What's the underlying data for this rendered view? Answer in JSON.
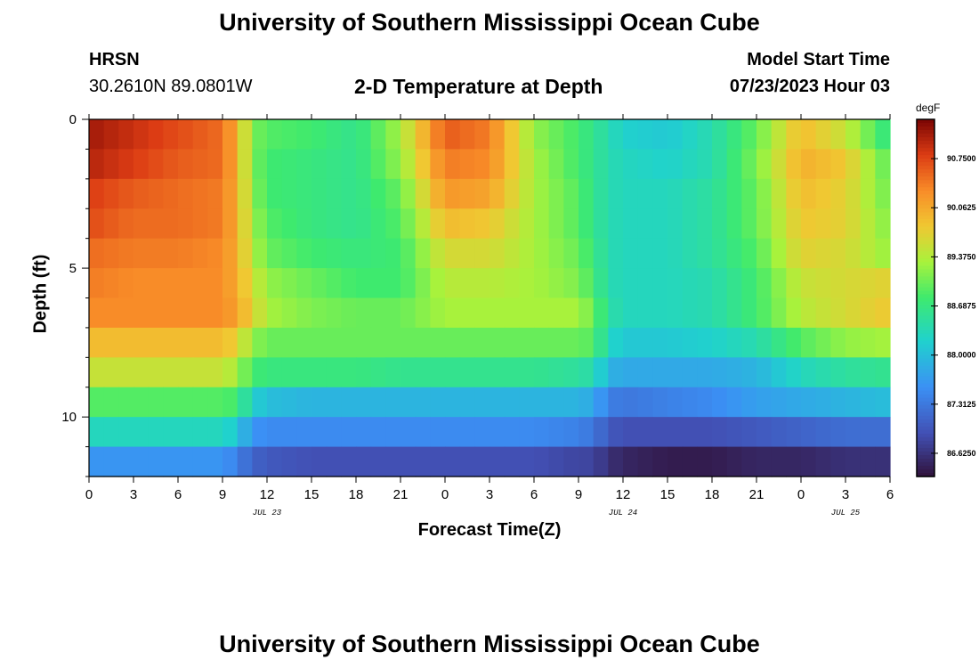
{
  "page": {
    "title": "University of Southern Mississippi Ocean Cube",
    "station": "HRSN",
    "coordinates": "30.2610N  89.0801W",
    "subtitle": "2-D Temperature at Depth",
    "model_start_label": "Model Start Time",
    "model_start_value": "07/23/2023 Hour 03",
    "footer_title": "University of Southern Mississippi Ocean Cube"
  },
  "chart_data": {
    "type": "heatmap",
    "title": "2-D Temperature at Depth",
    "xlabel": "Forecast Time(Z)",
    "ylabel": "Depth (ft)",
    "x_range_hours": [
      0,
      54
    ],
    "ylim": [
      12,
      0
    ],
    "x_tick_labels": [
      "0",
      "3",
      "6",
      "9",
      "12",
      "15",
      "18",
      "21",
      "0",
      "3",
      "6",
      "9",
      "12",
      "15",
      "18",
      "21",
      "0",
      "3",
      "6"
    ],
    "date_labels": [
      {
        "hour": 12,
        "text": "JUL 23"
      },
      {
        "hour": 36,
        "text": "JUL 24"
      },
      {
        "hour": 51,
        "text": "JUL 25"
      }
    ],
    "y_ticks": [
      0,
      5,
      10
    ],
    "colorbar": {
      "units": "degF",
      "range": [
        86.3,
        91.3
      ],
      "tick_values": [
        90.75,
        90.0625,
        89.375,
        88.6875,
        88.0,
        87.3125,
        86.625
      ],
      "tick_labels": [
        "90.7500",
        "90.0625",
        "89.3750",
        "88.6875",
        "88.0000",
        "87.3125",
        "86.6250"
      ]
    },
    "time_hours": [
      0,
      3,
      6,
      9,
      10,
      11,
      12,
      15,
      18,
      21,
      24,
      27,
      30,
      33,
      34,
      35,
      36,
      39,
      42,
      45,
      48,
      51,
      54
    ],
    "depth_rows_ft": [
      0.5,
      1.5,
      2.5,
      3.5,
      4.5,
      5.5,
      6.5,
      7.5,
      8.5,
      9.5,
      10.5,
      11.5
    ],
    "temperature_degF": [
      [
        91.1,
        90.9,
        90.7,
        90.5,
        90.0,
        89.1,
        88.9,
        88.8,
        88.6,
        89.3,
        90.6,
        90.4,
        89.2,
        88.8,
        88.6,
        88.4,
        88.2,
        88.1,
        88.4,
        89.0,
        89.9,
        89.5,
        88.6
      ],
      [
        91.0,
        90.8,
        90.6,
        90.5,
        90.0,
        89.1,
        88.8,
        88.7,
        88.6,
        89.2,
        90.4,
        90.3,
        89.3,
        88.8,
        88.6,
        88.4,
        88.3,
        88.2,
        88.4,
        89.1,
        90.0,
        89.8,
        88.9
      ],
      [
        90.8,
        90.6,
        90.5,
        90.4,
        90.0,
        89.2,
        88.8,
        88.7,
        88.6,
        89.0,
        90.2,
        90.1,
        89.3,
        88.9,
        88.6,
        88.4,
        88.3,
        88.3,
        88.5,
        89.0,
        89.9,
        89.7,
        89.0
      ],
      [
        90.7,
        90.5,
        90.5,
        90.4,
        90.0,
        89.3,
        88.9,
        88.7,
        88.6,
        88.9,
        89.9,
        89.8,
        89.3,
        88.9,
        88.6,
        88.4,
        88.3,
        88.3,
        88.5,
        89.0,
        89.8,
        89.7,
        89.1
      ],
      [
        90.5,
        90.4,
        90.4,
        90.3,
        90.0,
        89.4,
        89.0,
        88.8,
        88.7,
        88.8,
        89.6,
        89.6,
        89.3,
        89.0,
        88.7,
        88.4,
        88.3,
        88.3,
        88.5,
        88.9,
        89.7,
        89.6,
        89.2
      ],
      [
        90.4,
        90.3,
        90.3,
        90.3,
        90.0,
        89.6,
        89.2,
        89.0,
        88.8,
        88.8,
        89.4,
        89.4,
        89.3,
        89.1,
        88.8,
        88.4,
        88.3,
        88.3,
        88.4,
        88.8,
        89.5,
        89.6,
        89.7
      ],
      [
        90.3,
        90.3,
        90.3,
        90.3,
        90.1,
        89.7,
        89.3,
        89.1,
        89.0,
        89.0,
        89.3,
        89.3,
        89.3,
        89.3,
        89.0,
        88.5,
        88.3,
        88.3,
        88.4,
        88.8,
        89.4,
        89.6,
        89.8
      ],
      [
        89.9,
        89.9,
        89.9,
        89.9,
        89.7,
        89.2,
        89.0,
        89.0,
        89.0,
        89.0,
        89.0,
        89.0,
        89.0,
        89.0,
        88.9,
        88.3,
        88.1,
        88.1,
        88.2,
        88.4,
        88.9,
        89.2,
        89.3
      ],
      [
        89.5,
        89.5,
        89.5,
        89.5,
        89.3,
        88.8,
        88.7,
        88.7,
        88.7,
        88.6,
        88.6,
        88.6,
        88.6,
        88.5,
        88.4,
        87.9,
        87.8,
        87.8,
        87.8,
        87.9,
        88.3,
        88.5,
        88.6
      ],
      [
        88.9,
        88.9,
        88.9,
        88.9,
        88.8,
        88.2,
        88.0,
        87.9,
        87.9,
        87.9,
        87.9,
        87.9,
        87.9,
        87.9,
        87.8,
        87.4,
        87.3,
        87.4,
        87.5,
        87.7,
        87.8,
        87.9,
        88.0
      ],
      [
        88.3,
        88.3,
        88.3,
        88.3,
        88.1,
        87.6,
        87.5,
        87.5,
        87.5,
        87.5,
        87.5,
        87.5,
        87.5,
        87.4,
        87.3,
        87.0,
        86.9,
        86.9,
        86.9,
        87.0,
        87.1,
        87.2,
        87.2
      ],
      [
        87.6,
        87.6,
        87.6,
        87.6,
        87.4,
        87.1,
        87.0,
        86.9,
        86.9,
        86.9,
        86.9,
        86.9,
        86.9,
        86.8,
        86.8,
        86.6,
        86.5,
        86.4,
        86.4,
        86.5,
        86.5,
        86.6,
        86.6
      ]
    ]
  }
}
